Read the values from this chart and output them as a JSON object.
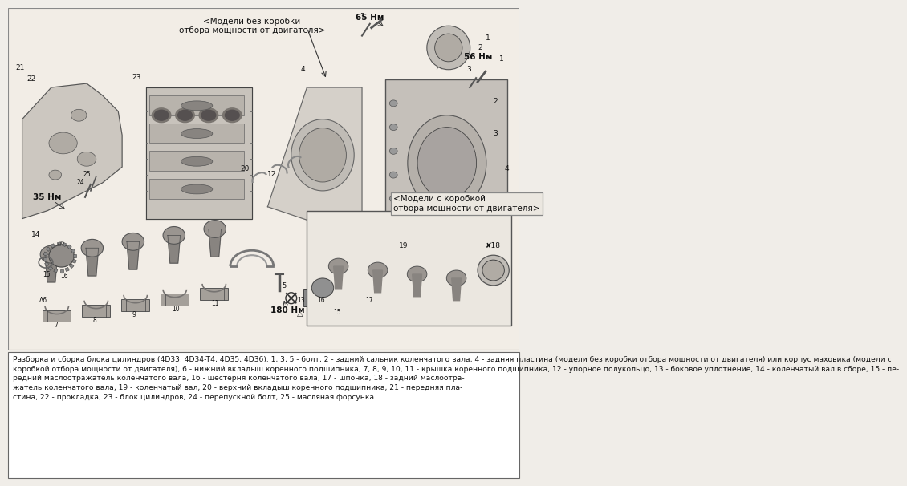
{
  "bg_color": "#f0ede8",
  "diagram_bg": "#e8e4de",
  "caption_bg": "#ffffff",
  "border_color": "#999999",
  "caption_lines": [
    "Разборка и сборка блока цилиндров (4D33, 4D34-T4, 4D35, 4D36). 1, 3, 5 - болт, 2 - задний сальник коленчатого вала, 4 - задняя пластина (модели без коробки отбора мощности от двигателя) или корпус маховика (модели с",
    "коробкой отбора мощности от двигателя), 6 - нижний вкладыш коренного подшипника, 7, 8, 9, 10, 11 - крышка коренного подшипника, 12 - упорное полукольцо, 13 - боковое уплотнение, 14 - коленчатый вал в сборе, 15 - пе-",
    "редний маслоотражатель коленчатого вала, 16 - шестерня коленчатого вала, 17 - шпонка, 18 - задний маслоотражатель коленчатого вала, 19 - коленчатый вал, 20 - верхний вкладыш коренного подшипника, 21 - передняя пла-",
    "стина, 22 - прокладка, 23 - блок цилиндров, 24 - перепускной болт, 25 - масляная форсунка."
  ],
  "label_no_gearbox": "<Модели без коробки\nотбора мощности от двигателя>",
  "label_with_gearbox": "<Модели с коробкой\nотбора мощности от двигателя>",
  "torque_65": "65 Нм",
  "torque_56": "56 Нм",
  "torque_35": "35 Нм",
  "torque_180": "180 Нм"
}
